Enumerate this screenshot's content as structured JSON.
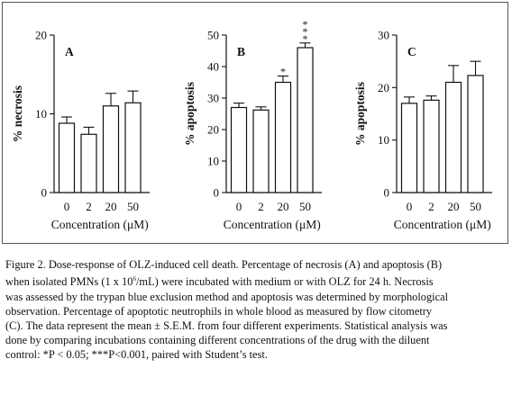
{
  "figure": {
    "x_axis_label": "Concentration (μM)"
  },
  "chart_data": [
    {
      "type": "bar",
      "panel": "A",
      "ylabel": "% necrosis",
      "categories": [
        "0",
        "2",
        "20",
        "50"
      ],
      "values": [
        8.8,
        7.4,
        11.0,
        11.4
      ],
      "errors": [
        0.8,
        0.9,
        1.6,
        1.5
      ],
      "significance": [
        "",
        "",
        "",
        ""
      ],
      "ylim": [
        0,
        20
      ],
      "yticks": [
        "0",
        "10",
        "20"
      ],
      "ytick_values": [
        0,
        10,
        20
      ]
    },
    {
      "type": "bar",
      "panel": "B",
      "ylabel": "% apoptosis",
      "categories": [
        "0",
        "2",
        "20",
        "50"
      ],
      "values": [
        27.0,
        26.2,
        35.0,
        46.0
      ],
      "errors": [
        1.4,
        1.0,
        2.0,
        1.5
      ],
      "significance": [
        "",
        "",
        "*",
        "***"
      ],
      "ylim": [
        0,
        50
      ],
      "yticks": [
        "0",
        "10",
        "20",
        "30",
        "40",
        "50"
      ],
      "ytick_values": [
        0,
        10,
        20,
        30,
        40,
        50
      ]
    },
    {
      "type": "bar",
      "panel": "C",
      "ylabel": "% apoptosis",
      "categories": [
        "0",
        "2",
        "20",
        "50"
      ],
      "values": [
        17.0,
        17.6,
        21.0,
        22.3
      ],
      "errors": [
        1.2,
        0.8,
        3.2,
        2.7
      ],
      "significance": [
        "",
        "",
        "",
        ""
      ],
      "ylim": [
        0,
        30
      ],
      "yticks": [
        "0",
        "10",
        "20",
        "30"
      ],
      "ytick_values": [
        0,
        10,
        20,
        30
      ]
    }
  ],
  "caption": {
    "line1": "Figure 2. Dose-response of OLZ-induced cell death. Percentage of necrosis (A) and apoptosis (B)",
    "line2_pre": "when isolated PMNs (1 x 10",
    "line2_sup": "6",
    "line2_post": "/mL) were incubated with medium or with OLZ for 24 h. Necrosis",
    "line3": "was assessed by the trypan blue exclusion method and apoptosis was determined by morphological",
    "line4": "observation. Percentage of apoptotic neutrophils in whole blood as measured by flow citometry",
    "line5": "(C). The data represent the mean ± S.E.M. from four different experiments. Statistical analysis was",
    "line6": "done by comparing incubations containing different concentrations of the drug with the diluent",
    "line7": "control: *P < 0.05; ***P<0.001, paired with Student’s test."
  }
}
